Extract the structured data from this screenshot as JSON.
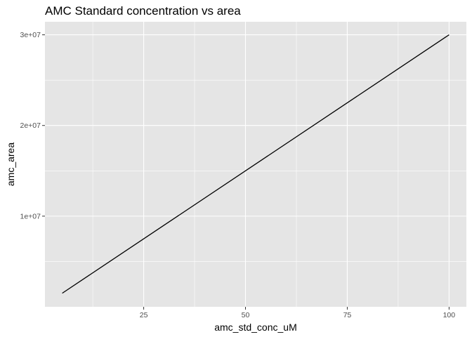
{
  "chart_data": {
    "type": "line",
    "title": "AMC Standard concentration vs area",
    "xlabel": "amc_std_conc_uM",
    "ylabel": "amc_area",
    "x_ticks": [
      25,
      50,
      75,
      100
    ],
    "x_tick_labels": [
      "25",
      "50",
      "75",
      "100"
    ],
    "y_ticks": [
      10000000,
      20000000,
      30000000
    ],
    "y_tick_labels": [
      "1e+07",
      "2e+07",
      "3e+07"
    ],
    "xlim": [
      0.75,
      104.25
    ],
    "ylim": [
      0,
      31440000
    ],
    "grid": true,
    "legend": "none",
    "colors": {
      "panel_background": "#e5e5e5",
      "grid": "#ffffff",
      "line": "#000000",
      "tick_text": "#4d4d4d",
      "tick_mark": "#333333"
    },
    "series": [
      {
        "x": [
          5,
          100
        ],
        "y": [
          1500000,
          30000000
        ]
      }
    ]
  }
}
